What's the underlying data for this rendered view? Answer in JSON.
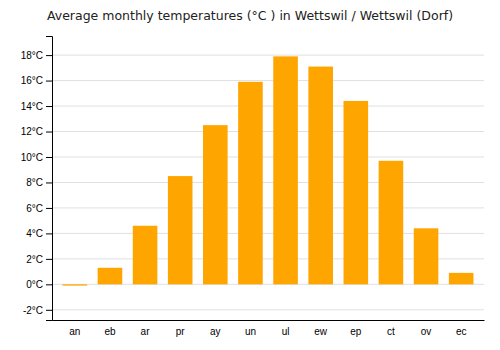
{
  "chart_data": {
    "type": "bar",
    "title": "Average monthly temperatures (°C ) in Wettswil / Wettswil (Dorf)",
    "categories": [
      "an",
      "eb",
      "ar",
      "pr",
      "ay",
      "un",
      "ul",
      "ew",
      "ep",
      "ct",
      "ov",
      "ec"
    ],
    "values": [
      -0.1,
      1.3,
      4.6,
      8.5,
      12.5,
      15.9,
      17.9,
      17.1,
      14.4,
      9.7,
      4.4,
      0.9
    ],
    "color": "#FFA500",
    "ylim": [
      -2.8,
      19.5
    ],
    "yticks": [
      {
        "value": -2,
        "label": "-2°C"
      },
      {
        "value": 0,
        "label": "0°C"
      },
      {
        "value": 2,
        "label": "2°C"
      },
      {
        "value": 4,
        "label": "4°C"
      },
      {
        "value": 6,
        "label": "6°C"
      },
      {
        "value": 8,
        "label": "8°C"
      },
      {
        "value": 10,
        "label": "10°C"
      },
      {
        "value": 12,
        "label": "12°C"
      },
      {
        "value": 14,
        "label": "14°C"
      },
      {
        "value": 16,
        "label": "16°C"
      },
      {
        "value": 18,
        "label": "18°C"
      }
    ],
    "grid": true
  }
}
